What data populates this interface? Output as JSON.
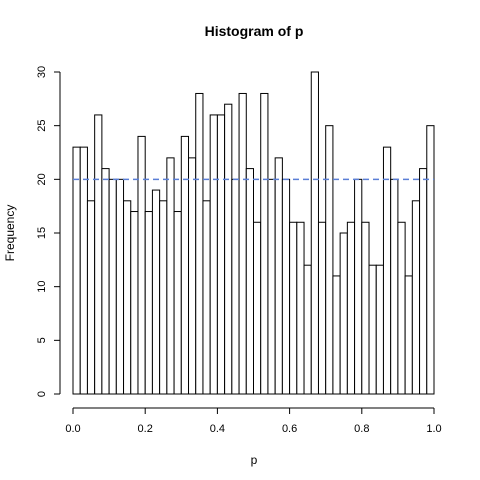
{
  "chart_data": {
    "type": "bar",
    "title": "Histogram of p",
    "xlabel": "p",
    "ylabel": "Frequency",
    "xlim": [
      0,
      1
    ],
    "ylim": [
      0,
      30
    ],
    "bin_width": 0.02,
    "bin_start": 0,
    "values": [
      23,
      23,
      18,
      26,
      21,
      20,
      20,
      18,
      17,
      24,
      17,
      19,
      18,
      22,
      17,
      24,
      22,
      28,
      18,
      26,
      26,
      27,
      20,
      28,
      21,
      16,
      28,
      20,
      22,
      20,
      16,
      16,
      12,
      30,
      16,
      25,
      11,
      15,
      16,
      20,
      16,
      12,
      12,
      23,
      20,
      16,
      11,
      18,
      21,
      25
    ],
    "x_ticks": [
      "0.0",
      "0.2",
      "0.4",
      "0.6",
      "0.8",
      "1.0"
    ],
    "x_tick_values": [
      0,
      0.2,
      0.4,
      0.6,
      0.8,
      1.0
    ],
    "y_ticks": [
      "0",
      "5",
      "10",
      "15",
      "20",
      "25",
      "30"
    ],
    "y_tick_values": [
      0,
      5,
      10,
      15,
      20,
      25,
      30
    ],
    "reference_line": {
      "y": 20,
      "style": "dashed",
      "color": "#5b7fd6"
    },
    "bar_fill": "#ffffff",
    "bar_stroke": "#000000",
    "grid": false,
    "legend": "none"
  }
}
